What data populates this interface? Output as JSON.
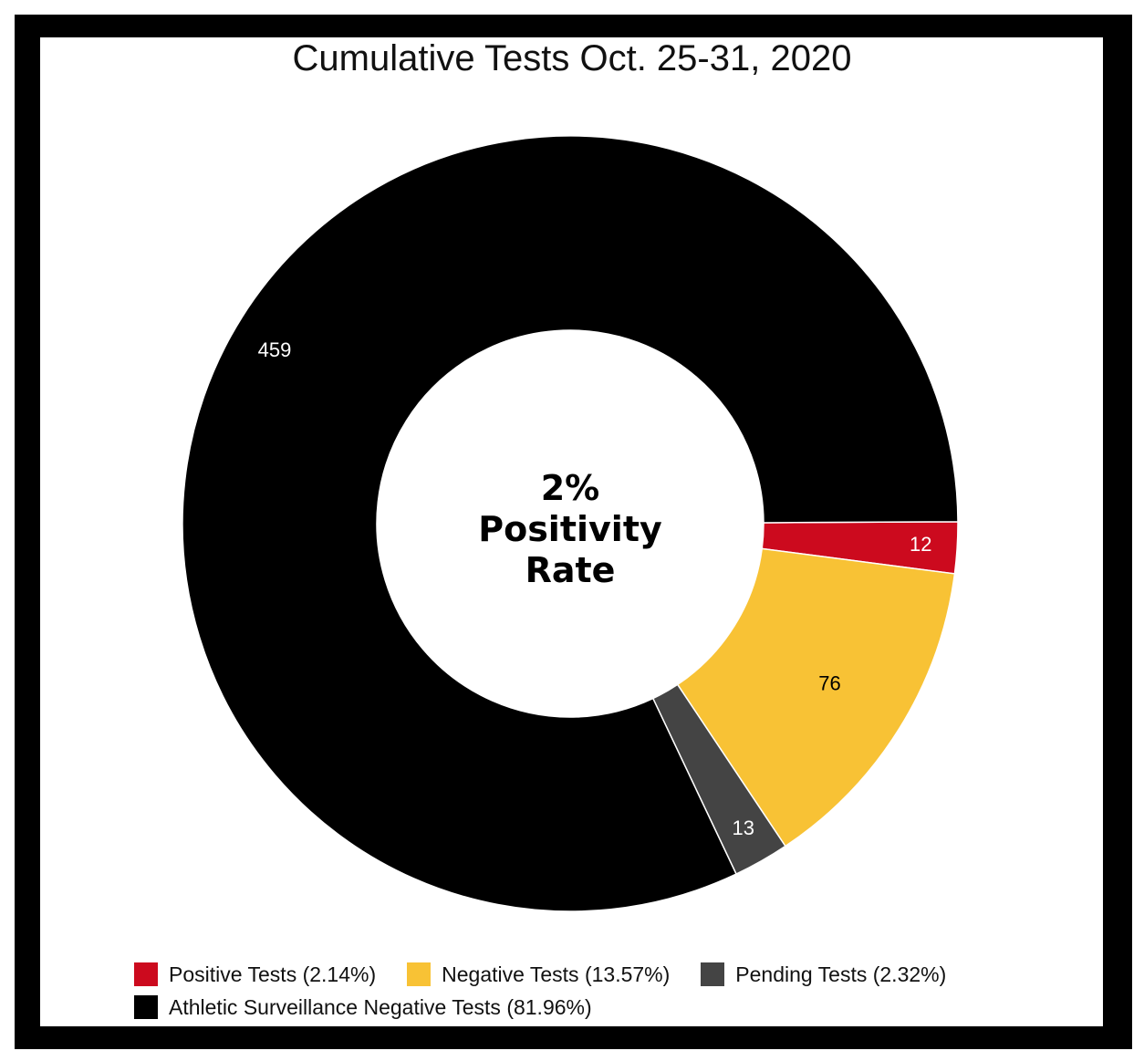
{
  "chart_data": {
    "type": "pie",
    "title": "Cumulative Tests Oct. 25-31, 2020",
    "center_label": [
      "2%",
      "Positivity",
      "Rate"
    ],
    "slices": [
      {
        "name": "Positive Tests (2.14%)",
        "value": 12,
        "label": "12",
        "color": "#cc0a1e",
        "label_color": "#ffffff"
      },
      {
        "name": "Negative Tests (13.57%)",
        "value": 76,
        "label": "76",
        "color": "#f8c235",
        "label_color": "#000000"
      },
      {
        "name": "Pending Tests (2.32%)",
        "value": 13,
        "label": "13",
        "color": "#444444",
        "label_color": "#ffffff"
      },
      {
        "name": "Athletic Surveillance Negative Tests (81.96%)",
        "value": 459,
        "label": "459",
        "color": "#000000",
        "label_color": "#ffffff"
      }
    ],
    "legend_rows": [
      [
        0,
        1,
        2
      ],
      [
        3
      ]
    ]
  }
}
